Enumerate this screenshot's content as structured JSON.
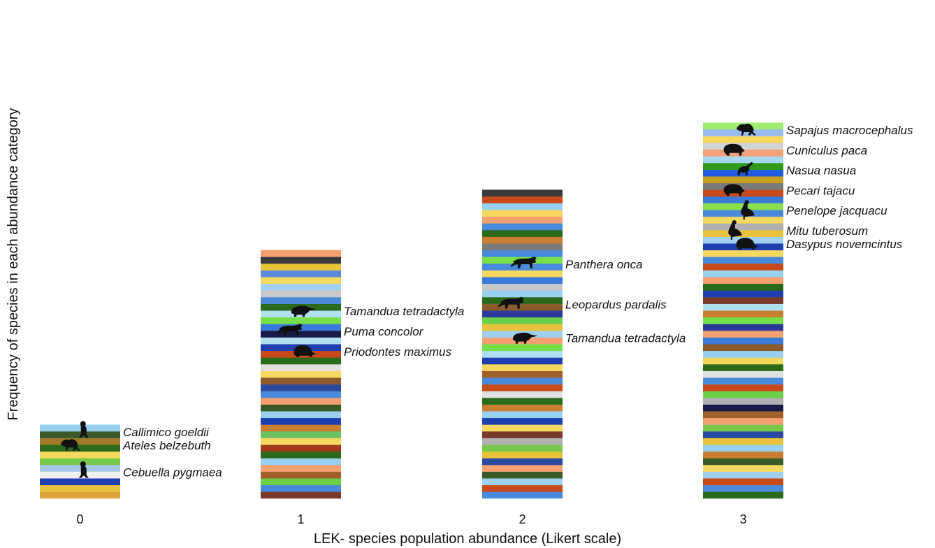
{
  "chart_data": {
    "type": "bar",
    "style": "stacked columns of colored bands, one band per species",
    "xlabel": "LEK- species population abundance (Likert scale)",
    "ylabel": "Frequency of species in each abundance category",
    "categories": [
      "0",
      "1",
      "2",
      "3"
    ],
    "grid": false,
    "legend": "none",
    "bars": [
      {
        "category": "0",
        "labeled_species": [
          {
            "name": "Callimico goeldii",
            "icon": "monkey-sitting-icon"
          },
          {
            "name": "Ateles belzebuth",
            "icon": "spider-monkey-icon"
          },
          {
            "name": "Cebuella pygmaea",
            "icon": "pygmy-marmoset-icon"
          }
        ],
        "bands": [
          "#e0a53a",
          "#e8c23a",
          "#1f3fb0",
          "#f0f0f0",
          "#a8c8e8",
          "#76c94a",
          "#f4d860",
          "#2a6a1a",
          "#a07a2a",
          "#3a5a2a",
          "#98d0f0"
        ]
      },
      {
        "category": "1",
        "labeled_species": [
          {
            "name": "Tamandua tetradactyla",
            "icon": "anteater-icon"
          },
          {
            "name": "Puma concolor",
            "icon": "puma-icon"
          },
          {
            "name": "Priodontes maximus",
            "icon": "giant-armadillo-icon"
          }
        ],
        "bands": [
          "#7a3a2a",
          "#4a8adc",
          "#6ad04a",
          "#a0602a",
          "#f4a070",
          "#98d0f0",
          "#2a6a1a",
          "#a03a1a",
          "#f4d860",
          "#6ac060",
          "#c88030",
          "#1f3fb0",
          "#98d0f0",
          "#3a5a2a",
          "#f4a070",
          "#4a8adc",
          "#2a4aa0",
          "#8a5a2a",
          "#f4d860",
          "#e0e0e0",
          "#2a6a1a",
          "#c84a1a",
          "#1f3fb0",
          "#b0e0f0",
          "#1a1a4a",
          "#3a7ad8",
          "#76e04a",
          "#b0e0f0",
          "#2a6a1a",
          "#4a8adc",
          "#c8c8c8",
          "#a0d0f0",
          "#f4d860",
          "#5a8ad8",
          "#e8c23a",
          "#3a3a3a",
          "#f4a070"
        ]
      },
      {
        "category": "2",
        "labeled_species": [
          {
            "name": "Panthera onca",
            "icon": "jaguar-icon"
          },
          {
            "name": "Leopardus pardalis",
            "icon": "ocelot-icon"
          },
          {
            "name": "Tamandua tetradactyla",
            "icon": "anteater-icon"
          }
        ],
        "bands": [
          "#4a8adc",
          "#c84a1a",
          "#a0d0f0",
          "#3a5a2a",
          "#f4a070",
          "#2a4aa0",
          "#e8c23a",
          "#76c94a",
          "#b0b0b0",
          "#7a3a2a",
          "#f4d860",
          "#1f3fb0",
          "#98d0f0",
          "#c88030",
          "#2a6a1a",
          "#e0e0e0",
          "#c84a1a",
          "#4a8adc",
          "#a0602a",
          "#f4d860",
          "#1f3fb0",
          "#b0e0f0",
          "#76e04a",
          "#f4a070",
          "#a0d0f0",
          "#e8c23a",
          "#6ad04a",
          "#2a3a9a",
          "#8a5a2a",
          "#2a6a1a",
          "#98d0f0",
          "#c8c8c8",
          "#3a7ad8",
          "#f4d860",
          "#4a8adc",
          "#76e04a",
          "#4a8adc",
          "#7a7a7a",
          "#c88030",
          "#2a6a1a",
          "#4a8adc",
          "#f4a070",
          "#f4d860",
          "#98d0f0",
          "#c84a1a",
          "#3a3a3a"
        ]
      },
      {
        "category": "3",
        "labeled_species": [
          {
            "name": "Sapajus macrocephalus",
            "icon": "capuchin-icon"
          },
          {
            "name": "Cuniculus paca",
            "icon": "paca-icon"
          },
          {
            "name": "Nasua nasua",
            "icon": "coati-icon"
          },
          {
            "name": "Pecari tajacu",
            "icon": "peccary-icon"
          },
          {
            "name": "Penelope jacquacu",
            "icon": "guan-icon"
          },
          {
            "name": "Mitu tuberosum",
            "icon": "curassow-icon"
          },
          {
            "name": "Dasypus novemcintus",
            "icon": "armadillo-icon"
          }
        ],
        "bands": [
          "#2a6a1a",
          "#4a8adc",
          "#c84a1a",
          "#a0d0f0",
          "#f4d860",
          "#3a5a2a",
          "#c88030",
          "#98d0f0",
          "#e8c23a",
          "#2a4aa0",
          "#76c94a",
          "#f4a070",
          "#a0602a",
          "#1a1a4a",
          "#b0b0b0",
          "#6ad04a",
          "#c84a1a",
          "#4a8adc",
          "#e0e0e0",
          "#2a6a1a",
          "#f4d860",
          "#98d0f0",
          "#8a5a2a",
          "#3a7ad8",
          "#f4a070",
          "#2a3a9a",
          "#76e04a",
          "#c88030",
          "#b0e0f0",
          "#7a3a2a",
          "#1f3fb0",
          "#2a6a1a",
          "#f4a070",
          "#98d0f0",
          "#c84a1a",
          "#4a8adc",
          "#f4d860",
          "#1f3fb0",
          "#a0d0f0",
          "#e8c23a",
          "#b0b0b0",
          "#f4d860",
          "#4a8adc",
          "#8ae04a",
          "#3a7ad8",
          "#c84a1a",
          "#7a7a7a",
          "#c8a020",
          "#1f5ae0",
          "#2e9a1a",
          "#a8d8f0",
          "#f4a07a",
          "#d0d4d4",
          "#f4d860",
          "#98bcf0",
          "#a0ec70"
        ]
      }
    ]
  }
}
